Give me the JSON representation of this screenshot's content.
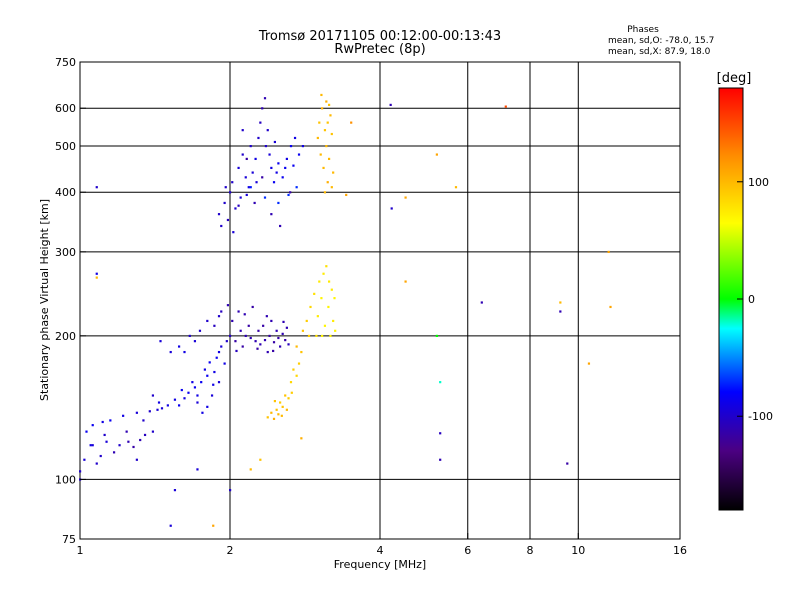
{
  "chart_data": {
    "type": "scatter",
    "title": "Tromsø 20171105 00:12:00-00:13:43",
    "subtitle": "RwPretec (8p)",
    "xlabel": "Frequency [MHz]",
    "ylabel": "Stationary phase Virtual Height [km]",
    "x_scale": "log",
    "y_scale": "log",
    "xlim": [
      1,
      16
    ],
    "ylim": [
      75,
      750
    ],
    "x_ticks": [
      1,
      2,
      4,
      6,
      8,
      10,
      16
    ],
    "x_tick_labels": [
      "1",
      "2",
      "4",
      "6",
      "8",
      "10",
      "16"
    ],
    "x_grid": [
      2,
      4,
      6,
      8,
      10
    ],
    "y_ticks": [
      75,
      100,
      200,
      300,
      400,
      500,
      600,
      750
    ],
    "y_tick_labels": [
      "75",
      "100",
      "200",
      "300",
      "400",
      "500",
      "600",
      "750"
    ],
    "y_grid": [
      100,
      200,
      300,
      400,
      500,
      600
    ],
    "grid": true,
    "stats_header": "Phases",
    "stats": [
      "mean, sd,O: -78.0, 15.7",
      "mean, sd,X:  87.9, 18.0"
    ],
    "colorbar": {
      "label": "[deg]",
      "range": [
        -180,
        180
      ],
      "ticks": [
        100,
        0,
        -100
      ],
      "tick_labels": [
        "100",
        "0",
        "-100"
      ],
      "colors": [
        "#000000",
        "#4b0082",
        "#0000ff",
        "#00ffff",
        "#00ff00",
        "#ffff00",
        "#ff8c00",
        "#ff0000"
      ]
    },
    "series": [
      {
        "points": [
          [
            1.0,
            104,
            -100
          ],
          [
            1.02,
            110,
            -95
          ],
          [
            1.03,
            126,
            -85
          ],
          [
            1.05,
            118,
            -90
          ],
          [
            1.06,
            130,
            -85
          ],
          [
            1.08,
            108,
            -100
          ],
          [
            1.1,
            112,
            -100
          ],
          [
            1.11,
            132,
            -90
          ],
          [
            1.13,
            120,
            -95
          ],
          [
            1.15,
            133,
            -85
          ],
          [
            1.17,
            114,
            -110
          ],
          [
            1.2,
            118,
            -100
          ],
          [
            1.22,
            136,
            -90
          ],
          [
            1.25,
            120,
            -110
          ],
          [
            1.28,
            117,
            -115
          ],
          [
            1.3,
            138,
            -95
          ],
          [
            1.32,
            121,
            -110
          ],
          [
            1.35,
            124,
            -105
          ],
          [
            1.38,
            139,
            -100
          ],
          [
            1.4,
            126,
            -100
          ],
          [
            1.43,
            140,
            -95
          ],
          [
            1.46,
            141,
            -95
          ],
          [
            1.5,
            143,
            -90
          ],
          [
            1.55,
            147,
            -90
          ],
          [
            1.58,
            143,
            -85
          ],
          [
            1.62,
            148,
            -90
          ],
          [
            1.65,
            152,
            -85
          ],
          [
            1.7,
            156,
            -85
          ],
          [
            1.72,
            150,
            -90
          ],
          [
            1.75,
            160,
            -85
          ],
          [
            1.78,
            170,
            -90
          ],
          [
            1.8,
            165,
            -85
          ],
          [
            1.82,
            176,
            -85
          ],
          [
            1.85,
            158,
            -90
          ],
          [
            1.88,
            180,
            -85
          ],
          [
            1.9,
            185,
            -90
          ],
          [
            1.92,
            190,
            -95
          ],
          [
            1.95,
            175,
            -90
          ],
          [
            1.97,
            195,
            -100
          ],
          [
            1.72,
            145,
            -95
          ],
          [
            1.76,
            138,
            -90
          ],
          [
            1.8,
            142,
            -90
          ],
          [
            1.84,
            150,
            -95
          ],
          [
            1.86,
            168,
            -90
          ],
          [
            1.52,
            185,
            -95
          ],
          [
            1.58,
            190,
            -90
          ],
          [
            1.66,
            200,
            -100
          ],
          [
            1.74,
            205,
            -100
          ],
          [
            1.86,
            210,
            -105
          ],
          [
            1.92,
            225,
            -105
          ],
          [
            1.98,
            232,
            -110
          ],
          [
            1.45,
            195,
            -95
          ],
          [
            1.62,
            185,
            -90
          ],
          [
            1.7,
            195,
            -95
          ],
          [
            1.8,
            215,
            -100
          ],
          [
            1.9,
            220,
            -100
          ],
          [
            2.0,
            200,
            -105
          ],
          [
            2.02,
            215,
            -110
          ],
          [
            2.05,
            195,
            -115
          ],
          [
            2.08,
            225,
            -110
          ],
          [
            2.1,
            205,
            -110
          ],
          [
            2.12,
            190,
            -115
          ],
          [
            2.15,
            200,
            -110
          ],
          [
            2.18,
            210,
            -115
          ],
          [
            2.2,
            198,
            -110
          ],
          [
            2.22,
            230,
            -115
          ],
          [
            2.25,
            195,
            -110
          ],
          [
            2.28,
            205,
            -115
          ],
          [
            2.3,
            192,
            -110
          ],
          [
            2.33,
            210,
            -115
          ],
          [
            2.35,
            196,
            -110
          ],
          [
            2.38,
            185,
            -110
          ],
          [
            2.4,
            200,
            -115
          ],
          [
            2.42,
            215,
            -110
          ],
          [
            2.45,
            194,
            -115
          ],
          [
            2.48,
            205,
            -110
          ],
          [
            2.5,
            198,
            -115
          ],
          [
            2.52,
            190,
            -110
          ],
          [
            2.55,
            202,
            -110
          ],
          [
            2.58,
            196,
            -115
          ],
          [
            2.6,
            208,
            -110
          ],
          [
            2.62,
            192,
            -105
          ],
          [
            2.06,
            186,
            -105
          ],
          [
            2.14,
            222,
            -110
          ],
          [
            2.27,
            188,
            -115
          ],
          [
            2.37,
            220,
            -110
          ],
          [
            2.44,
            186,
            -115
          ],
          [
            2.56,
            214,
            -110
          ],
          [
            1.9,
            360,
            -100
          ],
          [
            1.92,
            340,
            -100
          ],
          [
            1.95,
            380,
            -100
          ],
          [
            1.98,
            350,
            -105
          ],
          [
            2.0,
            400,
            -100
          ],
          [
            2.02,
            420,
            -100
          ],
          [
            2.05,
            370,
            -100
          ],
          [
            2.08,
            450,
            -95
          ],
          [
            2.1,
            390,
            -95
          ],
          [
            2.12,
            480,
            -100
          ],
          [
            2.15,
            430,
            -95
          ],
          [
            2.18,
            410,
            -90
          ],
          [
            2.2,
            500,
            -100
          ],
          [
            2.22,
            440,
            -95
          ],
          [
            2.25,
            470,
            -90
          ],
          [
            2.28,
            520,
            -100
          ],
          [
            2.3,
            560,
            -105
          ],
          [
            2.32,
            600,
            -110
          ],
          [
            2.35,
            630,
            -110
          ],
          [
            2.38,
            540,
            -100
          ],
          [
            2.4,
            480,
            -95
          ],
          [
            2.42,
            450,
            -90
          ],
          [
            2.45,
            420,
            -85
          ],
          [
            2.48,
            440,
            -90
          ],
          [
            2.5,
            460,
            -85
          ],
          [
            2.55,
            430,
            -85
          ],
          [
            2.6,
            470,
            -90
          ],
          [
            2.65,
            500,
            -85
          ],
          [
            2.7,
            520,
            -90
          ],
          [
            2.75,
            480,
            -85
          ],
          [
            2.8,
            500,
            -90
          ],
          [
            2.03,
            330,
            -95
          ],
          [
            2.16,
            395,
            -95
          ],
          [
            2.26,
            420,
            -95
          ],
          [
            2.36,
            500,
            -100
          ],
          [
            2.46,
            510,
            -95
          ],
          [
            2.58,
            450,
            -85
          ],
          [
            2.68,
            455,
            -85
          ],
          [
            2.12,
            540,
            -100
          ],
          [
            1.96,
            410,
            -100
          ],
          [
            2.2,
            410,
            -75
          ],
          [
            2.35,
            390,
            -70
          ],
          [
            2.5,
            380,
            -70
          ],
          [
            2.62,
            395,
            -70
          ],
          [
            2.72,
            410,
            -70
          ],
          [
            2.38,
            135,
            95
          ],
          [
            2.42,
            138,
            100
          ],
          [
            2.45,
            134,
            105
          ],
          [
            2.48,
            140,
            95
          ],
          [
            2.5,
            137,
            100
          ],
          [
            2.52,
            145,
            90
          ],
          [
            2.55,
            142,
            95
          ],
          [
            2.58,
            150,
            95
          ],
          [
            2.6,
            140,
            100
          ],
          [
            2.62,
            148,
            90
          ],
          [
            2.65,
            160,
            85
          ],
          [
            2.68,
            170,
            90
          ],
          [
            2.72,
            165,
            85
          ],
          [
            2.75,
            175,
            90
          ],
          [
            2.72,
            190,
            100
          ],
          [
            2.8,
            205,
            95
          ],
          [
            2.85,
            215,
            90
          ],
          [
            2.9,
            230,
            85
          ],
          [
            2.95,
            245,
            80
          ],
          [
            3.0,
            220,
            75
          ],
          [
            3.02,
            260,
            75
          ],
          [
            3.05,
            240,
            70
          ],
          [
            3.08,
            270,
            75
          ],
          [
            3.1,
            210,
            70
          ],
          [
            3.12,
            280,
            80
          ],
          [
            3.15,
            230,
            70
          ],
          [
            3.18,
            200,
            70
          ],
          [
            3.2,
            250,
            75
          ],
          [
            3.22,
            215,
            75
          ],
          [
            3.25,
            205,
            70
          ],
          [
            3.0,
            520,
            100
          ],
          [
            3.02,
            560,
            95
          ],
          [
            3.04,
            480,
            100
          ],
          [
            3.06,
            600,
            105
          ],
          [
            3.08,
            450,
            100
          ],
          [
            3.1,
            540,
            95
          ],
          [
            3.12,
            500,
            100
          ],
          [
            3.14,
            420,
            105
          ],
          [
            3.16,
            470,
            100
          ],
          [
            3.18,
            580,
            100
          ],
          [
            3.2,
            530,
            95
          ],
          [
            3.22,
            440,
            100
          ],
          [
            3.05,
            640,
            100
          ],
          [
            3.12,
            620,
            105
          ],
          [
            3.16,
            610,
            95
          ],
          [
            3.2,
            410,
            100
          ],
          [
            3.1,
            400,
            100
          ],
          [
            3.14,
            560,
            95
          ],
          [
            1.06,
            118,
            -95
          ],
          [
            1.12,
            124,
            -100
          ],
          [
            1.24,
            126,
            -110
          ],
          [
            1.34,
            133,
            -100
          ],
          [
            1.44,
            145,
            -90
          ],
          [
            1.6,
            154,
            -85
          ],
          [
            1.68,
            160,
            -90
          ],
          [
            2.16,
            470,
            -115
          ],
          [
            2.24,
            380,
            -110
          ],
          [
            2.32,
            430,
            -115
          ],
          [
            2.42,
            360,
            -110
          ],
          [
            2.52,
            340,
            -110
          ],
          [
            2.64,
            400,
            -115
          ],
          [
            2.46,
            146,
            95
          ],
          [
            2.54,
            136,
            100
          ],
          [
            2.66,
            152,
            90
          ],
          [
            2.78,
            185,
            95
          ],
          [
            2.88,
            200,
            90
          ],
          [
            2.98,
            200,
            80
          ],
          [
            3.06,
            200,
            70
          ],
          [
            3.16,
            260,
            75
          ],
          [
            3.24,
            240,
            70
          ],
          [
            1.08,
            410,
            -100
          ],
          [
            1.08,
            270,
            -90
          ],
          [
            1.4,
            150,
            -100
          ],
          [
            1.72,
            105,
            -95
          ],
          [
            2.0,
            95,
            -100
          ],
          [
            1.52,
            80,
            -95
          ],
          [
            1.3,
            110,
            -100
          ],
          [
            1.9,
            160,
            -95
          ],
          [
            4.22,
            370,
            -100
          ],
          [
            6.4,
            235,
            -110
          ],
          [
            5.28,
            110,
            -110
          ],
          [
            5.28,
            125,
            -105
          ],
          [
            9.5,
            108,
            -115
          ],
          [
            9.2,
            225,
            -110
          ],
          [
            4.2,
            610,
            -110
          ],
          [
            2.08,
            375,
            -105
          ],
          [
            1.55,
            95,
            -95
          ],
          [
            2.2,
            105,
            100
          ],
          [
            2.3,
            110,
            95
          ],
          [
            2.78,
            122,
            105
          ],
          [
            3.42,
            395,
            110
          ],
          [
            4.5,
            390,
            110
          ],
          [
            4.5,
            260,
            110
          ],
          [
            1.85,
            80,
            110
          ],
          [
            1.08,
            265,
            100
          ],
          [
            5.68,
            410,
            100
          ],
          [
            7.15,
            605,
            150
          ],
          [
            5.2,
            200,
            0
          ],
          [
            5.28,
            160,
            -20
          ],
          [
            9.2,
            235,
            100
          ],
          [
            10.5,
            175,
            110
          ],
          [
            11.5,
            300,
            110
          ],
          [
            11.6,
            230,
            110
          ],
          [
            3.5,
            560,
            120
          ],
          [
            5.2,
            480,
            110
          ],
          [
            1.0,
            100,
            -100
          ]
        ]
      }
    ]
  }
}
